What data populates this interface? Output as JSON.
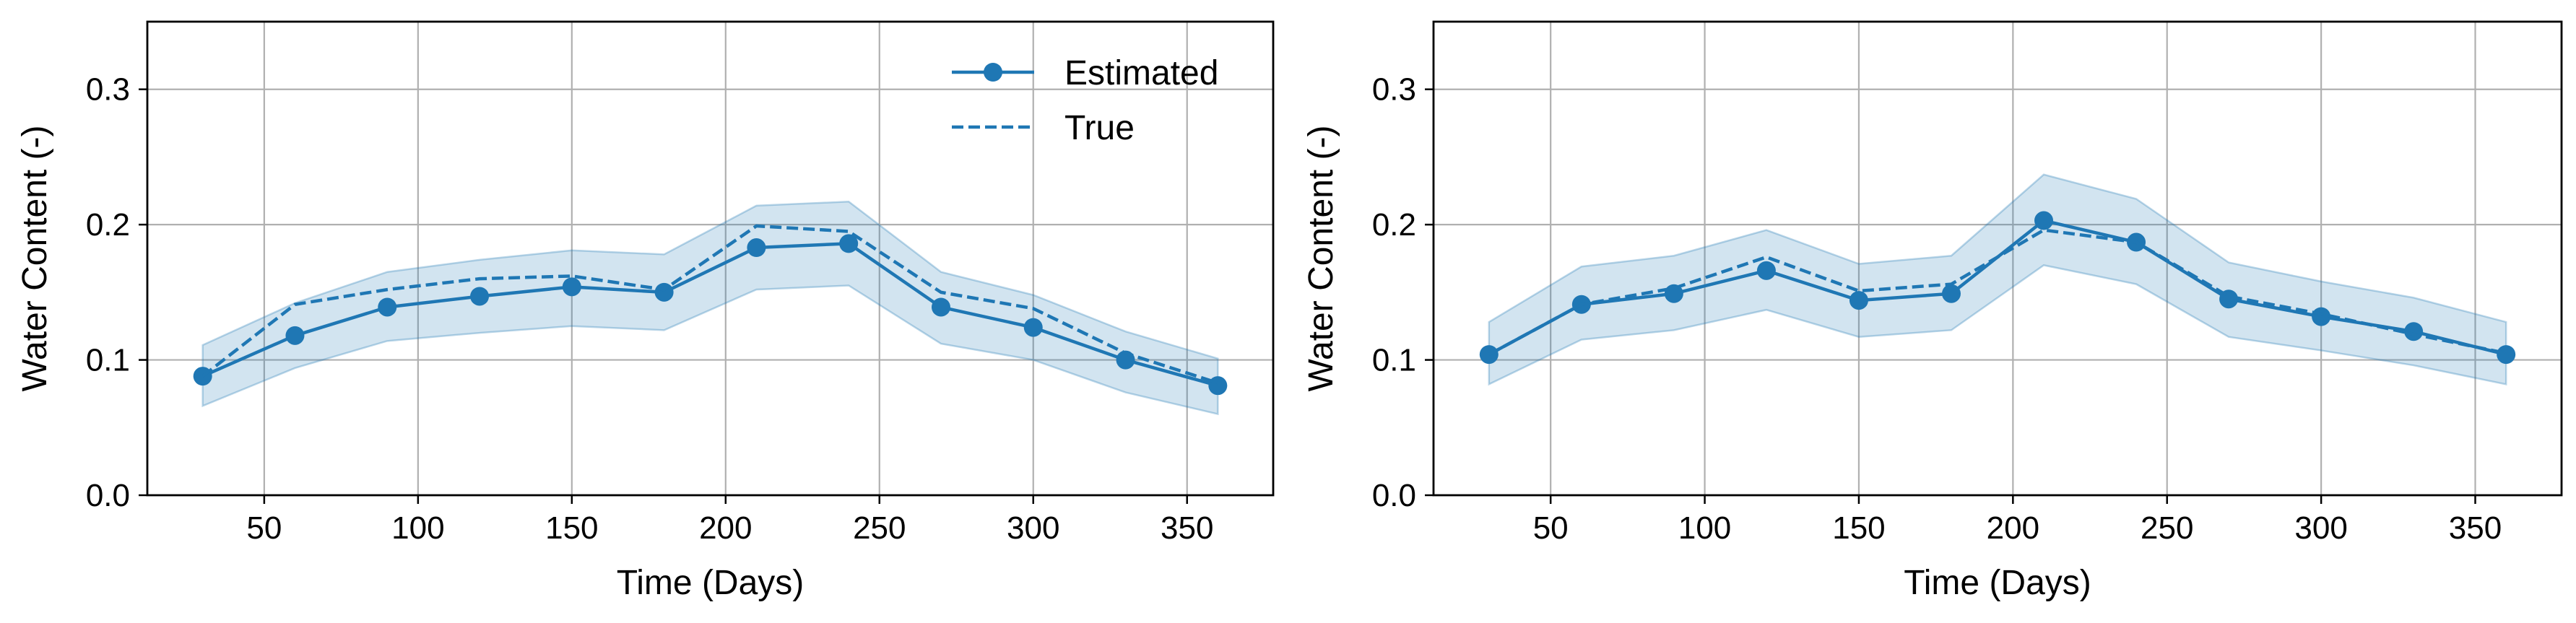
{
  "chart_data": [
    {
      "type": "line",
      "xlabel": "Time (Days)",
      "ylabel": "Water Content (-)",
      "xlim": [
        12,
        378
      ],
      "ylim": [
        0,
        0.35
      ],
      "xticks": [
        50,
        100,
        150,
        200,
        250,
        300,
        350
      ],
      "yticks": [
        "0.0",
        "0.1",
        "0.2",
        "0.3"
      ],
      "grid": true,
      "legend": "top-right",
      "x": [
        30,
        60,
        90,
        120,
        150,
        180,
        210,
        240,
        270,
        300,
        330,
        360
      ],
      "series": [
        {
          "name": "Estimated",
          "style": "solid-marker",
          "values": [
            0.088,
            0.118,
            0.139,
            0.147,
            0.154,
            0.15,
            0.183,
            0.186,
            0.139,
            0.124,
            0.1,
            0.081
          ]
        },
        {
          "name": "True",
          "style": "dashed",
          "values": [
            0.088,
            0.141,
            0.152,
            0.16,
            0.162,
            0.152,
            0.199,
            0.195,
            0.15,
            0.138,
            0.105,
            0.083
          ]
        }
      ],
      "band": {
        "lower": [
          0.066,
          0.094,
          0.114,
          0.12,
          0.125,
          0.122,
          0.152,
          0.155,
          0.112,
          0.1,
          0.076,
          0.06
        ],
        "upper": [
          0.111,
          0.142,
          0.165,
          0.174,
          0.181,
          0.178,
          0.214,
          0.217,
          0.165,
          0.148,
          0.121,
          0.101
        ]
      }
    },
    {
      "type": "line",
      "xlabel": "Time (Days)",
      "ylabel": "Water Content (-)",
      "xlim": [
        12,
        378
      ],
      "ylim": [
        0,
        0.35
      ],
      "xticks": [
        50,
        100,
        150,
        200,
        250,
        300,
        350
      ],
      "yticks": [
        "0.0",
        "0.1",
        "0.2",
        "0.3"
      ],
      "grid": true,
      "legend": "none",
      "x": [
        30,
        60,
        90,
        120,
        150,
        180,
        210,
        240,
        270,
        300,
        330,
        360
      ],
      "series": [
        {
          "name": "Estimated",
          "style": "solid-marker",
          "values": [
            0.104,
            0.141,
            0.149,
            0.166,
            0.144,
            0.149,
            0.203,
            0.187,
            0.145,
            0.132,
            0.121,
            0.104
          ]
        },
        {
          "name": "True",
          "style": "dashed",
          "values": [
            0.104,
            0.141,
            0.153,
            0.176,
            0.151,
            0.156,
            0.196,
            0.187,
            0.147,
            0.134,
            0.119,
            0.105
          ]
        }
      ],
      "band": {
        "lower": [
          0.082,
          0.115,
          0.122,
          0.137,
          0.117,
          0.122,
          0.17,
          0.156,
          0.117,
          0.107,
          0.096,
          0.082
        ],
        "upper": [
          0.128,
          0.169,
          0.177,
          0.196,
          0.171,
          0.177,
          0.237,
          0.219,
          0.172,
          0.158,
          0.146,
          0.128
        ]
      }
    }
  ],
  "colors": {
    "line": "#1f77b4",
    "band": "#1f77b4",
    "grid": "#b0b0b0",
    "axes": "#000000"
  }
}
